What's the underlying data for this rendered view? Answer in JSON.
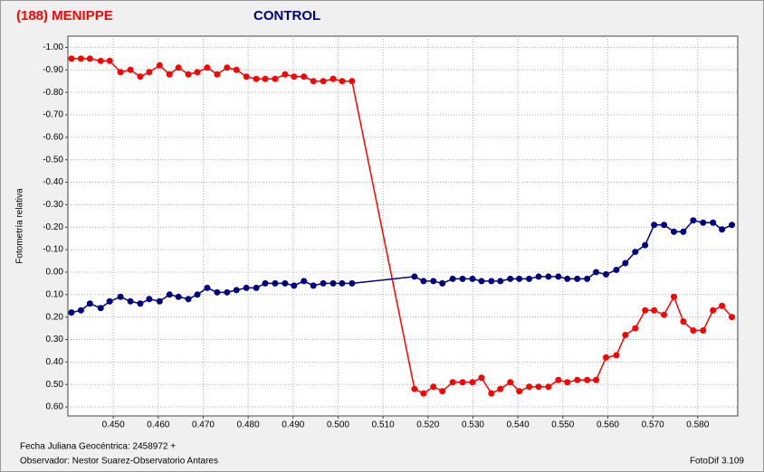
{
  "chart_data": {
    "type": "line",
    "ylabel": "Fotometría relativa",
    "xlabel": "Fecha Juliana Geocéntrica: 2458972 +",
    "observer": "Observador: Nestor Suarez-Observatorio Antares",
    "software": "FotoDif 3.109",
    "x": [
      0.4407,
      0.4428,
      0.4448,
      0.4472,
      0.4492,
      0.4516,
      0.4538,
      0.456,
      0.458,
      0.4603,
      0.4625,
      0.4645,
      0.4667,
      0.4687,
      0.4709,
      0.4731,
      0.4753,
      0.4774,
      0.4796,
      0.4818,
      0.4838,
      0.486,
      0.4882,
      0.4902,
      0.4924,
      0.4945,
      0.4967,
      0.4989,
      0.5009,
      0.5031,
      0.517,
      0.519,
      0.5212,
      0.5232,
      0.5255,
      0.5277,
      0.5299,
      0.5319,
      0.5341,
      0.5361,
      0.5383,
      0.5403,
      0.5425,
      0.5446,
      0.5468,
      0.549,
      0.551,
      0.5532,
      0.5554,
      0.5574,
      0.5596,
      0.5619,
      0.5639,
      0.5661,
      0.5683,
      0.5703,
      0.5725,
      0.5747,
      0.5768,
      0.579,
      0.5812,
      0.5834,
      0.5854,
      0.5876
    ],
    "series": [
      {
        "name": "(188) MENIPPE",
        "color": "#ff0000",
        "values": [
          -0.95,
          -0.95,
          -0.95,
          -0.94,
          -0.94,
          -0.89,
          -0.9,
          -0.87,
          -0.89,
          -0.92,
          -0.88,
          -0.91,
          -0.88,
          -0.89,
          -0.91,
          -0.88,
          -0.91,
          -0.9,
          -0.87,
          -0.86,
          -0.86,
          -0.86,
          -0.88,
          -0.87,
          -0.87,
          -0.85,
          -0.85,
          -0.86,
          -0.85,
          -0.85,
          0.52,
          0.54,
          0.51,
          0.53,
          0.49,
          0.49,
          0.49,
          0.47,
          0.54,
          0.52,
          0.49,
          0.53,
          0.51,
          0.51,
          0.51,
          0.48,
          0.49,
          0.48,
          0.48,
          0.48,
          0.38,
          0.37,
          0.28,
          0.25,
          0.17,
          0.17,
          0.19,
          0.11,
          0.22,
          0.26,
          0.26,
          0.17,
          0.15,
          0.2
        ]
      },
      {
        "name": "CONTROL",
        "color": "#000080",
        "values": [
          0.18,
          0.17,
          0.14,
          0.16,
          0.13,
          0.11,
          0.13,
          0.14,
          0.12,
          0.13,
          0.1,
          0.11,
          0.12,
          0.1,
          0.07,
          0.09,
          0.09,
          0.08,
          0.07,
          0.07,
          0.05,
          0.05,
          0.05,
          0.06,
          0.04,
          0.06,
          0.05,
          0.05,
          0.05,
          0.05,
          0.02,
          0.04,
          0.04,
          0.05,
          0.03,
          0.03,
          0.03,
          0.04,
          0.04,
          0.04,
          0.03,
          0.03,
          0.03,
          0.02,
          0.02,
          0.02,
          0.03,
          0.03,
          0.03,
          0.0,
          0.01,
          -0.01,
          -0.04,
          -0.09,
          -0.12,
          -0.21,
          -0.21,
          -0.18,
          -0.18,
          -0.23,
          -0.22,
          -0.22,
          -0.19,
          -0.21
        ]
      }
    ],
    "xlim": [
      0.4399,
      0.5889
    ],
    "ylim": [
      0.64,
      -1.05
    ],
    "xticks": [
      {
        "value": 0.45,
        "label": "0.450"
      },
      {
        "value": 0.46,
        "label": "0.460"
      },
      {
        "value": 0.47,
        "label": "0.470"
      },
      {
        "value": 0.48,
        "label": "0.480"
      },
      {
        "value": 0.49,
        "label": "0.490"
      },
      {
        "value": 0.5,
        "label": "0.500"
      },
      {
        "value": 0.51,
        "label": "0.510"
      },
      {
        "value": 0.52,
        "label": "0.520"
      },
      {
        "value": 0.53,
        "label": "0.530"
      },
      {
        "value": 0.54,
        "label": "0.540"
      },
      {
        "value": 0.55,
        "label": "0.550"
      },
      {
        "value": 0.56,
        "label": "0.560"
      },
      {
        "value": 0.57,
        "label": "0.570"
      },
      {
        "value": 0.58,
        "label": "0.580"
      }
    ],
    "yticks": [
      {
        "value": -1.0,
        "label": "-1.00"
      },
      {
        "value": -0.9,
        "label": "-0.90"
      },
      {
        "value": -0.8,
        "label": "-0.80"
      },
      {
        "value": -0.7,
        "label": "-0.70"
      },
      {
        "value": -0.6,
        "label": "-0.60"
      },
      {
        "value": -0.5,
        "label": "-0.50"
      },
      {
        "value": -0.4,
        "label": "-0.40"
      },
      {
        "value": -0.3,
        "label": "-0.30"
      },
      {
        "value": -0.2,
        "label": "-0.20"
      },
      {
        "value": -0.1,
        "label": "-0.10"
      },
      {
        "value": 0.0,
        "label": "0.00"
      },
      {
        "value": 0.1,
        "label": "0.10"
      },
      {
        "value": 0.2,
        "label": "0.20"
      },
      {
        "value": 0.3,
        "label": "0.30"
      },
      {
        "value": 0.4,
        "label": "0.40"
      },
      {
        "value": 0.5,
        "label": "0.50"
      },
      {
        "value": 0.6,
        "label": "0.60"
      }
    ],
    "grid": true
  }
}
